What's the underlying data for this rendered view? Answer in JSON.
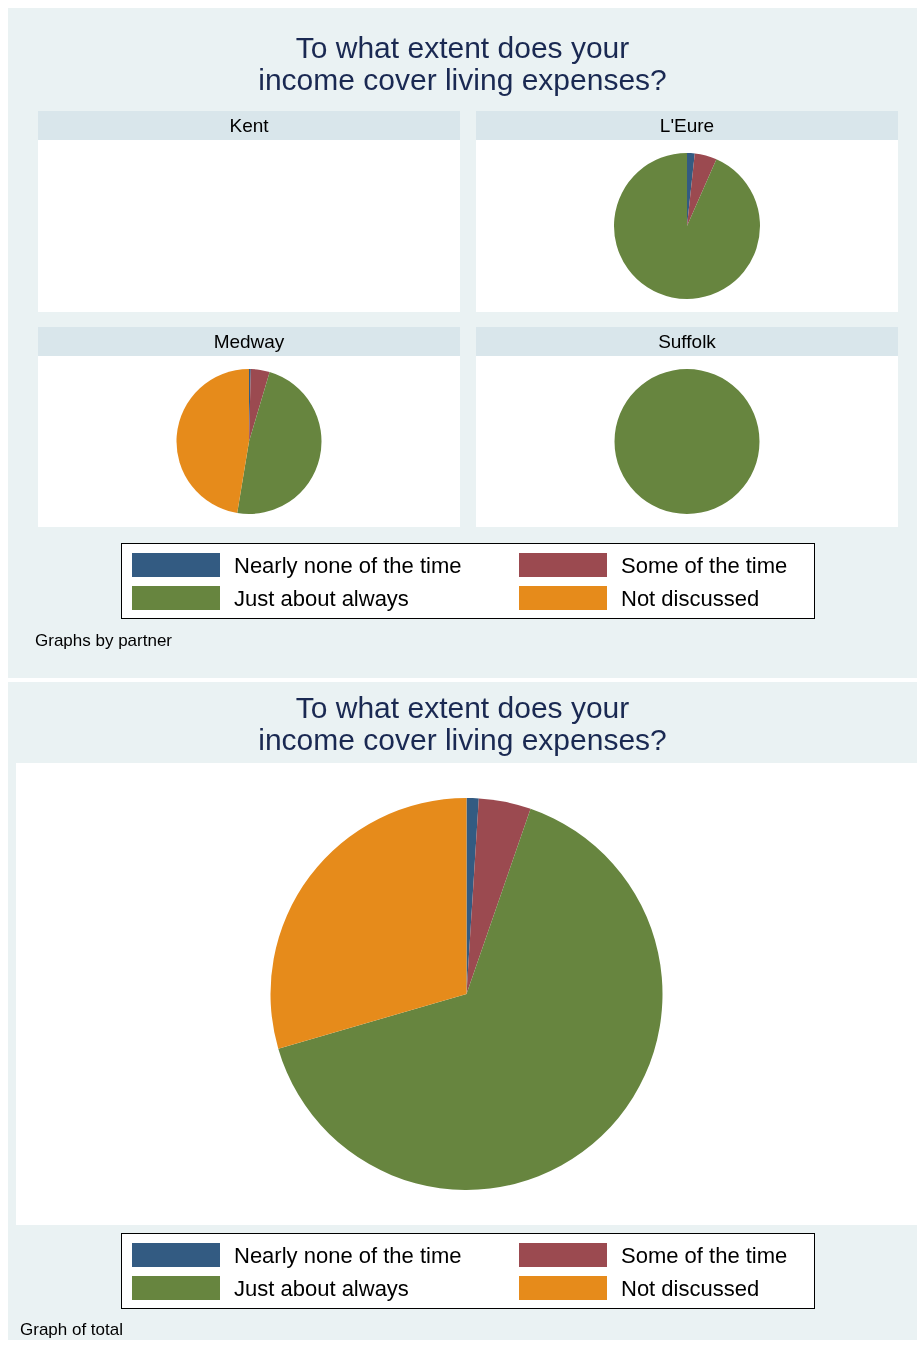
{
  "chart_data": [
    {
      "type": "other",
      "title": "To what extent does your\nincome cover living expenses?",
      "subtitle": "Kent"
    },
    {
      "type": "pie",
      "subtitle": "L'Eure",
      "values": [
        1.7,
        4.9,
        93.4,
        0
      ],
      "colors": [
        "#335b82",
        "#9b4a50",
        "#67853f",
        "#e68b1b"
      ]
    },
    {
      "type": "pie",
      "subtitle": "Medway",
      "values": [
        0.4,
        4.2,
        48,
        47.4
      ],
      "colors": [
        "#335b82",
        "#9b4a50",
        "#67853f",
        "#e68b1b"
      ]
    },
    {
      "type": "pie",
      "subtitle": "Suffolk",
      "categories": [
        "Nearly none of the time",
        "Some of the time",
        "Just about always",
        "Not discussed"
      ],
      "values": [
        0,
        0,
        100,
        0
      ],
      "colors": [
        "#335b82",
        "#9b4a50",
        "#67853f",
        "#e68b1b"
      ],
      "legend": "bottom",
      "annotations": [
        "Graphs by partner"
      ]
    },
    {
      "type": "pie",
      "title": "To what extent does your\nincome cover living expenses?",
      "categories": [
        "Nearly none of the time",
        "Some of the time",
        "Just about always",
        "Not discussed"
      ],
      "values": [
        1,
        4.3,
        65.2,
        29.5
      ],
      "colors": [
        "#335b82",
        "#9b4a50",
        "#67853f",
        "#e68b1b"
      ],
      "legend": "bottom",
      "annotations": [
        "Graph of total"
      ]
    }
  ]
}
